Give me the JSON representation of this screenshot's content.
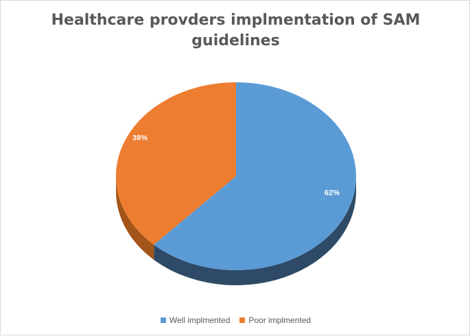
{
  "chart_data": {
    "type": "pie",
    "title": "Healthcare provders implmentation of SAM\nguidelines",
    "categories": [
      "Well implmented",
      "Poor implmented"
    ],
    "values": [
      62,
      38
    ],
    "data_labels": [
      "62%",
      "38%"
    ],
    "colors": [
      "#5b9bd5",
      "#ed7d31"
    ],
    "side_colors": [
      "#2e4a66",
      "#a35419"
    ],
    "legend_position": "bottom",
    "style": "3d"
  }
}
